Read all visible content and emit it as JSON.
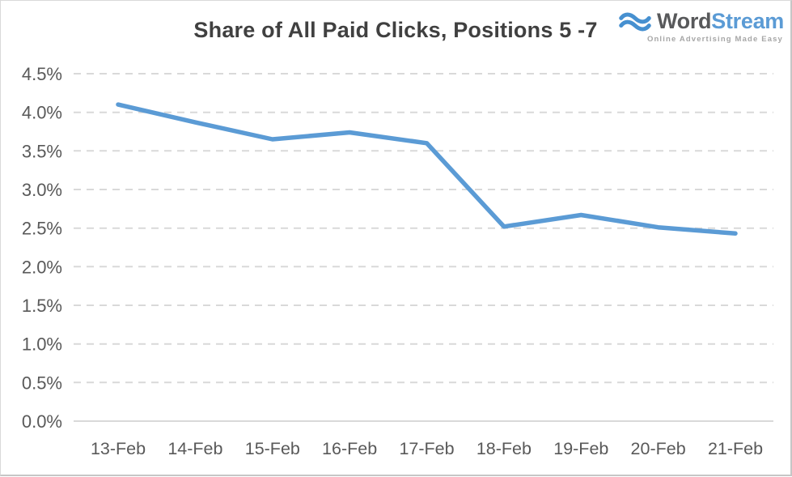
{
  "logo": {
    "word": "Word",
    "stream": "Stream",
    "tagline": "Online Advertising Made Easy"
  },
  "colors": {
    "line": "#5b9bd5",
    "gridline": "#d9d9d9",
    "axis_text": "#595959",
    "title_text": "#404040",
    "logo_wave_blue": "#4690d0",
    "logo_word_gray": "#58595b",
    "logo_stream_blue": "#5b9bd5",
    "tagline_gray": "#a6a6a6"
  },
  "chart_data": {
    "type": "line",
    "title": "Share of All Paid Clicks, Positions 5 -7",
    "categories": [
      "13-Feb",
      "14-Feb",
      "15-Feb",
      "16-Feb",
      "17-Feb",
      "18-Feb",
      "19-Feb",
      "20-Feb",
      "21-Feb"
    ],
    "values": [
      4.1,
      3.87,
      3.65,
      3.74,
      3.6,
      2.52,
      2.67,
      2.51,
      2.43
    ],
    "xlabel": "",
    "ylabel": "",
    "ylim": [
      0,
      4.5
    ],
    "ytick_step": 0.5,
    "ytick_labels": [
      "0.0%",
      "0.5%",
      "1.0%",
      "1.5%",
      "2.0%",
      "2.5%",
      "3.0%",
      "3.5%",
      "4.0%",
      "4.5%"
    ],
    "grid": "horizontal-dashed",
    "legend": "none",
    "marker": "none"
  }
}
